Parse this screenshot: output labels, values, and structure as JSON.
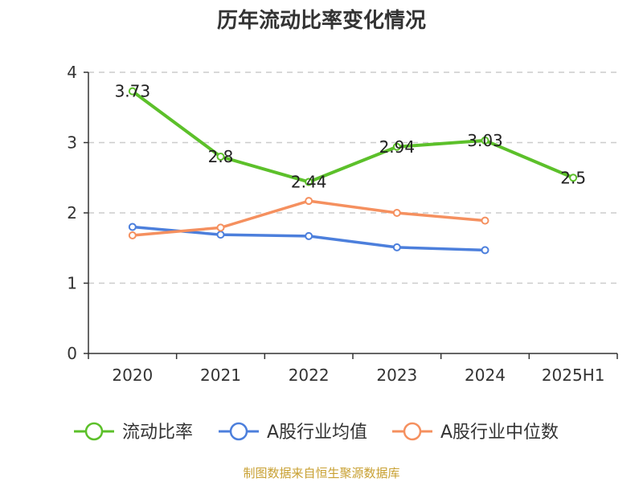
{
  "chart_data": {
    "type": "line",
    "title": "历年流动比率变化情况",
    "categories": [
      "2020",
      "2021",
      "2022",
      "2023",
      "2024",
      "2025H1"
    ],
    "ylim": [
      0,
      4
    ],
    "yticks": [
      "0",
      "1",
      "2",
      "3",
      "4"
    ],
    "grid": true,
    "legend_position": "bottom",
    "series": [
      {
        "name": "流动比率",
        "color": "#5cc02a",
        "values": [
          3.73,
          2.8,
          2.44,
          2.94,
          3.03,
          2.5
        ],
        "labels": [
          "3.73",
          "2.8",
          "2.44",
          "2.94",
          "3.03",
          "2.5"
        ]
      },
      {
        "name": "A股行业均值",
        "color": "#4c7fdc",
        "values": [
          1.8,
          1.69,
          1.67,
          1.51,
          1.47,
          null
        ]
      },
      {
        "name": "A股行业中位数",
        "color": "#f5905f",
        "values": [
          1.68,
          1.79,
          2.17,
          2.0,
          1.89,
          null
        ]
      }
    ],
    "source": "制图数据来自恒生聚源数据库"
  }
}
